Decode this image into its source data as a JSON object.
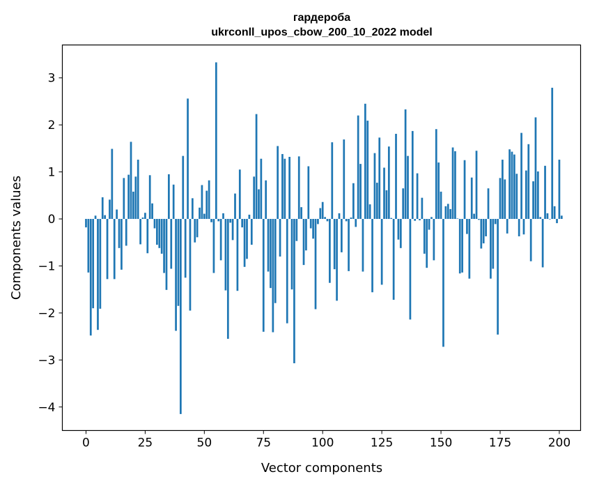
{
  "chart_data": {
    "type": "bar",
    "title_line1": "гардероба",
    "title_line2": "ukrconll_upos_cbow_200_10_2022 model",
    "xlabel": "Vector components",
    "ylabel": "Components values",
    "xlim": [
      -10,
      209
    ],
    "ylim": [
      -4.5,
      3.7
    ],
    "xticks": [
      0,
      25,
      50,
      75,
      100,
      125,
      150,
      175,
      200
    ],
    "xtick_labels": [
      "0",
      "25",
      "50",
      "75",
      "100",
      "125",
      "150",
      "175",
      "200"
    ],
    "yticks": [
      -4,
      -3,
      -2,
      -1,
      0,
      1,
      2,
      3
    ],
    "ytick_labels": [
      "−4",
      "−3",
      "−2",
      "−1",
      "0",
      "1",
      "2",
      "3"
    ],
    "bar_color": "#1f77b4",
    "grid": false,
    "values": [
      -0.18,
      -1.14,
      -2.48,
      -1.9,
      0.07,
      -2.36,
      -1.91,
      0.46,
      0.08,
      -1.28,
      0.41,
      1.49,
      -1.28,
      0.2,
      -0.62,
      -1.08,
      0.87,
      -0.57,
      0.94,
      1.64,
      0.58,
      0.9,
      1.26,
      -0.54,
      0.03,
      0.13,
      -0.73,
      0.93,
      0.33,
      -0.2,
      -0.55,
      -0.62,
      -0.74,
      -1.15,
      -1.51,
      0.95,
      -1.06,
      0.73,
      -2.38,
      -1.85,
      -4.15,
      1.34,
      -1.25,
      2.56,
      -1.95,
      0.44,
      -0.5,
      -0.39,
      0.24,
      0.72,
      0.11,
      0.6,
      0.82,
      -0.07,
      -1.15,
      3.33,
      -0.05,
      -0.88,
      0.12,
      -1.52,
      -2.55,
      -0.08,
      -0.45,
      0.54,
      -1.53,
      1.05,
      -0.18,
      -1.02,
      -0.85,
      0.09,
      -0.55,
      0.9,
      2.23,
      0.63,
      1.28,
      -2.4,
      0.82,
      -1.12,
      -1.47,
      -2.41,
      -1.79,
      1.55,
      -0.8,
      1.38,
      1.28,
      -2.22,
      1.32,
      -1.5,
      -3.07,
      -0.47,
      1.33,
      0.25,
      -0.98,
      -0.67,
      1.12,
      -0.2,
      -0.42,
      -1.92,
      -0.11,
      0.23,
      0.36,
      0.04,
      -0.05,
      -1.36,
      1.63,
      -1.07,
      -1.74,
      0.12,
      -0.71,
      1.69,
      -0.05,
      -1.11,
      0.03,
      0.76,
      -0.17,
      2.2,
      1.17,
      -1.12,
      2.45,
      2.09,
      0.31,
      -1.56,
      1.4,
      0.77,
      1.73,
      -1.4,
      1.09,
      0.61,
      1.54,
      0.02,
      -1.72,
      1.81,
      -0.44,
      -0.62,
      0.65,
      2.33,
      1.34,
      -2.14,
      1.87,
      -0.04,
      0.97,
      -0.03,
      0.45,
      -0.74,
      -1.04,
      -0.23,
      0.04,
      -0.88,
      1.91,
      1.2,
      0.58,
      -2.72,
      0.27,
      0.32,
      0.21,
      1.52,
      1.44,
      0.01,
      -1.16,
      -1.14,
      1.25,
      -0.32,
      -1.27,
      0.88,
      0.11,
      1.45,
      -0.02,
      -0.63,
      -0.52,
      -0.37,
      0.65,
      -1.27,
      -1.06,
      -0.11,
      -2.46,
      0.87,
      1.26,
      0.84,
      -0.31,
      1.48,
      1.43,
      1.37,
      0.96,
      -0.37,
      1.83,
      -0.33,
      1.03,
      1.59,
      -0.9,
      0.8,
      2.16,
      1.01,
      0.04,
      -1.03,
      1.13,
      0.12,
      -0.01,
      2.79,
      0.27,
      -0.09,
      1.26,
      0.07
    ]
  }
}
